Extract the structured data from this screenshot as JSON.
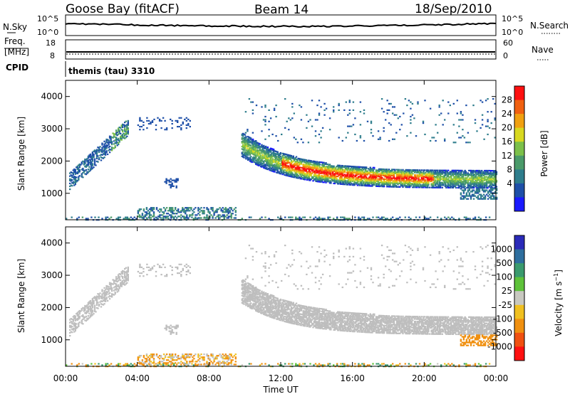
{
  "header": {
    "station": "Goose Bay (fitACF)",
    "beam": "Beam 14",
    "date": "18/Sep/2010"
  },
  "noise_panel": {
    "left_label": "N.Sky",
    "left_ticks": [
      "10^5",
      "10^0"
    ],
    "right_ticks": [
      "10^5",
      "10^0"
    ],
    "right_label": "N.Search"
  },
  "freq_panel": {
    "left_label_line1": "Freq.",
    "left_label_line2": "[MHz]",
    "left_ticks": [
      "18",
      "8"
    ],
    "right_ticks": [
      "60",
      "0"
    ],
    "right_label": "Nave"
  },
  "cpid": {
    "label": "CPID",
    "value": "themis (tau) 3310"
  },
  "x_axis": {
    "label": "Time UT",
    "ticks": [
      "00:00",
      "04:00",
      "08:00",
      "12:00",
      "16:00",
      "20:00",
      "00:00"
    ]
  },
  "colors": {
    "power_scale": [
      "#1a1aff",
      "#1e4fa8",
      "#2e7d8c",
      "#4a9a6a",
      "#7cc04a",
      "#d8d820",
      "#f0a010",
      "#f06010",
      "#ff1010"
    ],
    "velocity_scale": [
      "#2a2ab8",
      "#2e6e9e",
      "#3a9a6e",
      "#5ec23a",
      "#c8c8c0",
      "#f0c020",
      "#f09010",
      "#f05010",
      "#ff1010"
    ],
    "ground_scatter": "#bebebe"
  },
  "chart_data": [
    {
      "type": "heatmap",
      "title": "",
      "xlabel": "Time UT",
      "ylabel": "Slant Range [km]",
      "xlim_hours": [
        0,
        24
      ],
      "ylim_km": [
        180,
        4500
      ],
      "y_ticks": [
        "1000",
        "2000",
        "3000",
        "4000"
      ],
      "colorbar": {
        "label": "Power [dB]",
        "ticks": [
          "4",
          "8",
          "12",
          "16",
          "20",
          "24",
          "28"
        ],
        "range": [
          0,
          32
        ]
      },
      "features": [
        {
          "desc": "near-range echoes",
          "hours": [
            0,
            24
          ],
          "range_km": [
            200,
            300
          ],
          "power_db": 8
        },
        {
          "desc": "morning band",
          "hours": [
            4,
            9.5
          ],
          "range_km": [
            250,
            600
          ],
          "power_db": 8
        },
        {
          "desc": "ascending trace",
          "hours": [
            0.2,
            3.5
          ],
          "range_km": [
            1400,
            3300
          ],
          "power_db": 8
        },
        {
          "desc": "patch near 02:30-03:30",
          "hours": [
            2.5,
            3.5
          ],
          "range_km": [
            2600,
            3300
          ],
          "power_db": 16
        },
        {
          "desc": "patch near 06:00",
          "hours": [
            5.5,
            6.3
          ],
          "range_km": [
            1200,
            1500
          ],
          "power_db": 8
        },
        {
          "desc": "strong band",
          "hours": [
            9.8,
            24
          ],
          "range_km": [
            1200,
            2600
          ],
          "peak_power_db": 30,
          "peak_hours": [
            12.5,
            20
          ]
        },
        {
          "desc": "upper scatter",
          "hours": [
            10,
            24
          ],
          "range_km": [
            2600,
            4000
          ],
          "power_db": 6
        }
      ]
    },
    {
      "type": "heatmap",
      "title": "",
      "xlabel": "Time UT",
      "ylabel": "Slant Range [km]",
      "xlim_hours": [
        0,
        24
      ],
      "ylim_km": [
        180,
        4500
      ],
      "y_ticks": [
        "1000",
        "2000",
        "3000",
        "4000"
      ],
      "colorbar": {
        "label": "Velocity [m s^-1]",
        "ticks": [
          "1000",
          "500",
          "100",
          "25",
          "-25",
          "-100",
          "-500",
          "-1000"
        ],
        "range": [
          -1500,
          1500
        ]
      },
      "features": [
        {
          "desc": "mostly ground scatter (grey)",
          "hours": [
            0,
            24
          ],
          "range_km": [
            1200,
            3500
          ],
          "velocity_m_s": 0
        },
        {
          "desc": "near-range mixed velocities",
          "hours": [
            0,
            24
          ],
          "range_km": [
            200,
            600
          ],
          "velocity_m_s": -100
        },
        {
          "desc": "late band negative velocities",
          "hours": [
            22,
            24
          ],
          "range_km": [
            800,
            1200
          ],
          "velocity_m_s": -100
        }
      ]
    }
  ]
}
